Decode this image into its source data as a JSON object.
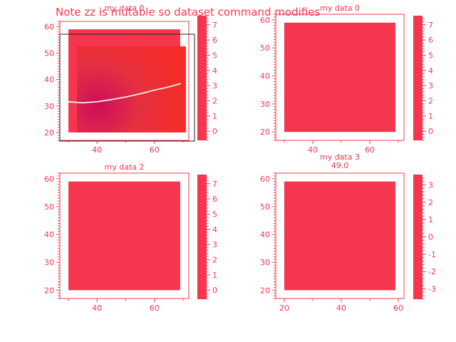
{
  "page_title": "Note zz is mutable so dataset command modifies",
  "colors": {
    "accent": "#f5394f",
    "fill": "#f5364e",
    "heat_hot": "#cf0c55",
    "heat_cool": "#fb2b1d"
  },
  "chart_data": [
    {
      "type": "heatmap",
      "title": "my data 0",
      "x_ticks": [
        "40",
        "60"
      ],
      "y_ticks": [
        "20",
        "30",
        "40",
        "50",
        "60"
      ],
      "colorbar_ticks": [
        "0",
        "1",
        "2",
        "3",
        "4",
        "5",
        "6",
        "7"
      ],
      "xlim": [
        27,
        72
      ],
      "ylim": [
        17,
        62
      ],
      "colorbar_range": [
        -0.6,
        7.6
      ],
      "image_extent": {
        "x": [
          30,
          69
        ],
        "y": [
          20,
          59
        ]
      },
      "hotspot": {
        "x": 42,
        "y": 30
      },
      "trace": [
        [
          30,
          31.6
        ],
        [
          35,
          31.2
        ],
        [
          40,
          31.6
        ],
        [
          45,
          32.4
        ],
        [
          50,
          33.4
        ],
        [
          55,
          34.6
        ],
        [
          60,
          36.0
        ],
        [
          65,
          37.2
        ],
        [
          69,
          38.4
        ]
      ],
      "overlay": true
    },
    {
      "type": "heatmap",
      "title": "my data 0",
      "x_ticks": [
        "40",
        "60"
      ],
      "y_ticks": [
        "20",
        "30",
        "40",
        "50",
        "60"
      ],
      "colorbar_ticks": [
        "0",
        "1",
        "2",
        "3",
        "4",
        "5",
        "6",
        "7"
      ],
      "xlim": [
        27,
        72
      ],
      "ylim": [
        17,
        62
      ],
      "colorbar_range": [
        -0.6,
        7.6
      ],
      "image_extent": {
        "x": [
          30,
          69
        ],
        "y": [
          20,
          59
        ]
      }
    },
    {
      "type": "heatmap",
      "title": "my data 2",
      "x_ticks": [
        "40",
        "60"
      ],
      "y_ticks": [
        "20",
        "30",
        "40",
        "50",
        "60"
      ],
      "colorbar_ticks": [
        "0",
        "1",
        "2",
        "3",
        "4",
        "5",
        "6",
        "7"
      ],
      "xlim": [
        27,
        72
      ],
      "ylim": [
        17,
        62
      ],
      "colorbar_range": [
        -0.6,
        7.6
      ],
      "image_extent": {
        "x": [
          30,
          69
        ],
        "y": [
          20,
          59
        ]
      }
    },
    {
      "type": "heatmap",
      "title": "my data 3",
      "subtitle": "49.0",
      "x_ticks": [
        "20",
        "40",
        "60"
      ],
      "y_ticks": [
        "20",
        "30",
        "40",
        "50",
        "60"
      ],
      "colorbar_ticks": [
        "-3",
        "-2",
        "-1",
        "0",
        "1",
        "2",
        "3"
      ],
      "xlim": [
        17,
        62
      ],
      "ylim": [
        17,
        62
      ],
      "colorbar_range": [
        -3.6,
        3.6
      ],
      "image_extent": {
        "x": [
          20,
          59
        ],
        "y": [
          20,
          59
        ]
      }
    }
  ]
}
